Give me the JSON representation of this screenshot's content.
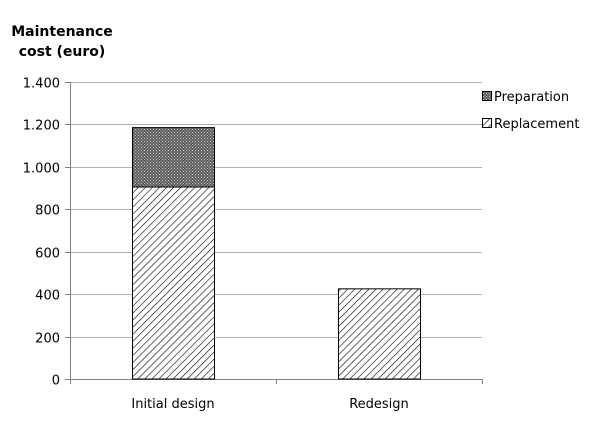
{
  "chart_data": {
    "type": "bar",
    "stacked": true,
    "ylabel_line1": "Maintenance",
    "ylabel_line2": "cost (euro)",
    "categories": [
      "Initial design",
      "Redesign"
    ],
    "series": [
      {
        "name": "Replacement",
        "values": [
          905,
          425
        ],
        "pattern": "diagonal-hatch"
      },
      {
        "name": "Preparation",
        "values": [
          280,
          0
        ],
        "pattern": "crosshatch-dark"
      }
    ],
    "ylim": [
      0,
      1400
    ],
    "yticks": [
      0,
      200,
      400,
      600,
      800,
      1000,
      1200,
      1400
    ],
    "ytick_labels": [
      "0",
      "200",
      "400",
      "600",
      "800",
      "1.000",
      "1.200",
      "1.400"
    ],
    "grid": true,
    "legend_position": "top-right",
    "legend_order": [
      "Preparation",
      "Replacement"
    ],
    "colors": {
      "grid": "#b0b0b0",
      "axis": "#808080",
      "bar_outline": "#000000"
    }
  }
}
